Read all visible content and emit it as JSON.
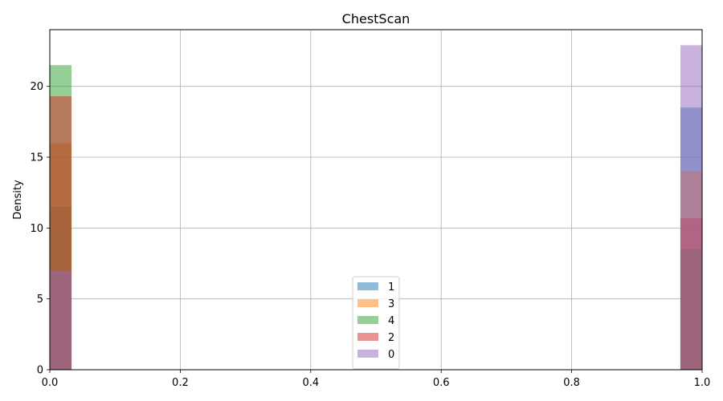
{
  "chart_data": {
    "type": "histogram",
    "title": "ChestScan",
    "xlabel": "",
    "ylabel": "Density",
    "xlim": [
      0,
      1
    ],
    "ylim": [
      0,
      24
    ],
    "x_ticks": [
      "0.0",
      "0.2",
      "0.4",
      "0.6",
      "0.8",
      "1.0"
    ],
    "y_ticks": [
      "0",
      "5",
      "10",
      "15",
      "20"
    ],
    "grid": true,
    "legend_position": "bottom-center",
    "bin_width": 0.0333,
    "alpha": 0.5,
    "series": [
      {
        "name": "1",
        "color": "#1f77b4",
        "bins": [
          {
            "x0": 0.0,
            "x1": 0.0333,
            "value": 11.5
          },
          {
            "x0": 0.9667,
            "x1": 1.0,
            "value": 18.5
          }
        ]
      },
      {
        "name": "3",
        "color": "#ff7f0e",
        "bins": [
          {
            "x0": 0.0,
            "x1": 0.0333,
            "value": 16.0
          },
          {
            "x0": 0.9667,
            "x1": 1.0,
            "value": 14.0
          }
        ]
      },
      {
        "name": "4",
        "color": "#2ca02c",
        "bins": [
          {
            "x0": 0.0,
            "x1": 0.0333,
            "value": 21.5
          },
          {
            "x0": 0.9667,
            "x1": 1.0,
            "value": 8.5
          }
        ]
      },
      {
        "name": "2",
        "color": "#d62728",
        "bins": [
          {
            "x0": 0.0,
            "x1": 0.0333,
            "value": 19.3
          },
          {
            "x0": 0.9667,
            "x1": 1.0,
            "value": 10.7
          }
        ]
      },
      {
        "name": "0",
        "color": "#9467bd",
        "bins": [
          {
            "x0": 0.0,
            "x1": 0.0333,
            "value": 7.0
          },
          {
            "x0": 0.9667,
            "x1": 1.0,
            "value": 22.9
          }
        ]
      }
    ]
  }
}
